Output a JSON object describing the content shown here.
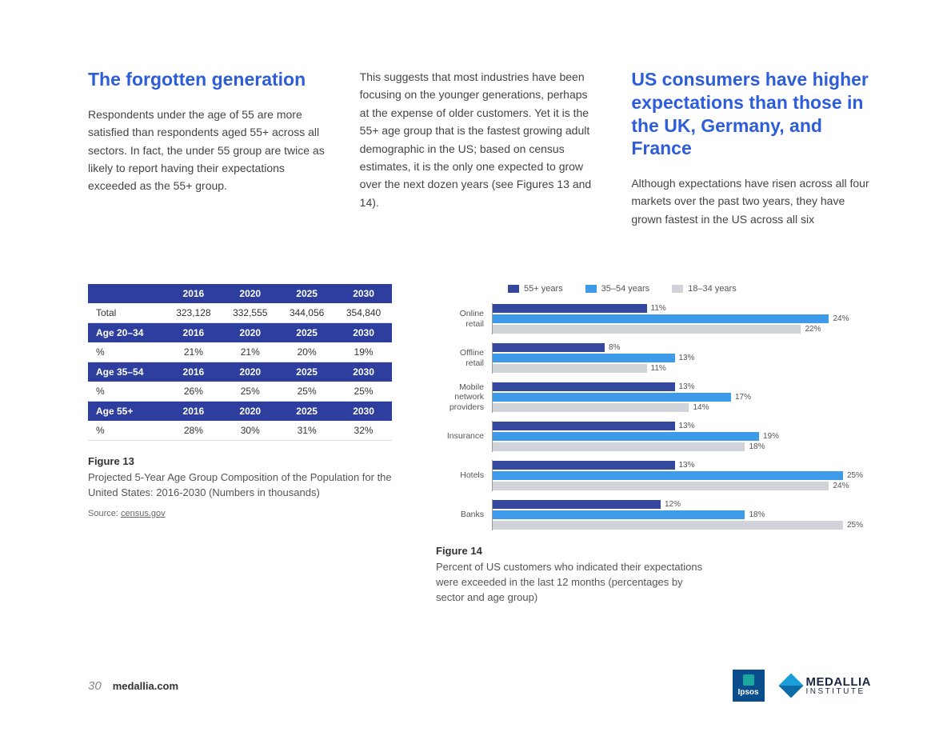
{
  "colors": {
    "heading_blue": "#2d5dd8",
    "table_header_bg": "#2d3e9e",
    "bar_55plus": "#34499e",
    "bar_35_54": "#3d9be9",
    "bar_18_34": "#d0d3d8"
  },
  "col1": {
    "heading": "The forgotten generation",
    "body": "Respondents under the age of 55 are more satisfied than respondents aged 55+ across all sectors. In fact, the under 55 group are twice as likely to report having their expectations exceeded as the 55+ group."
  },
  "col2": {
    "body": "This suggests that most industries have been focusing on the younger generations, perhaps at the expense of older customers. Yet it is the 55+ age group that is the fastest growing adult demographic in the US; based on census estimates, it is the only one expected to grow over the next dozen years (see Figures 13 and 14)."
  },
  "col3": {
    "heading": "US consumers have higher expectations than those in the UK, Germany, and France",
    "body": "Although expectations have risen across all four markets over the past two years, they have grown fastest in the US across all six"
  },
  "table": {
    "years": [
      "2016",
      "2020",
      "2025",
      "2030"
    ],
    "total_label": "Total",
    "total_values": [
      "323,128",
      "332,555",
      "344,056",
      "354,840"
    ],
    "groups": [
      {
        "label": "Age 20–34",
        "row_label": "%",
        "values": [
          "21%",
          "21%",
          "20%",
          "19%"
        ]
      },
      {
        "label": "Age 35–54",
        "row_label": "%",
        "values": [
          "26%",
          "25%",
          "25%",
          "25%"
        ]
      },
      {
        "label": "Age 55+",
        "row_label": "%",
        "values": [
          "28%",
          "30%",
          "31%",
          "32%"
        ]
      }
    ]
  },
  "fig13": {
    "label": "Figure 13",
    "desc": "Projected 5-Year Age Group Composition of the Population for the United States: 2016-2030 (Numbers in thousands)",
    "source_prefix": "Source: ",
    "source_link": "census.gov"
  },
  "chart": {
    "legend": [
      {
        "label": "55+ years",
        "color": "#34499e"
      },
      {
        "label": "35–54 years",
        "color": "#3d9be9"
      },
      {
        "label": "18–34 years",
        "color": "#d0d3d8"
      }
    ],
    "max": 27,
    "groups": [
      {
        "label": "Online retail",
        "values": [
          11,
          24,
          22
        ]
      },
      {
        "label": "Offline retail",
        "values": [
          8,
          13,
          11
        ]
      },
      {
        "label": "Mobile network providers",
        "values": [
          13,
          17,
          14
        ]
      },
      {
        "label": "Insurance",
        "values": [
          13,
          19,
          18
        ]
      },
      {
        "label": "Hotels",
        "values": [
          13,
          25,
          24
        ]
      },
      {
        "label": "Banks",
        "values": [
          12,
          18,
          25
        ]
      }
    ]
  },
  "fig14": {
    "label": "Figure 14",
    "desc": "Percent of US customers who indicated their expectations were exceeded in the last 12 months (percentages by sector and age group)"
  },
  "footer": {
    "page": "30",
    "url": "medallia.com",
    "ipsos": "Ipsos",
    "medallia_name": "MEDALLIA",
    "medallia_sub": "INSTITUTE"
  }
}
